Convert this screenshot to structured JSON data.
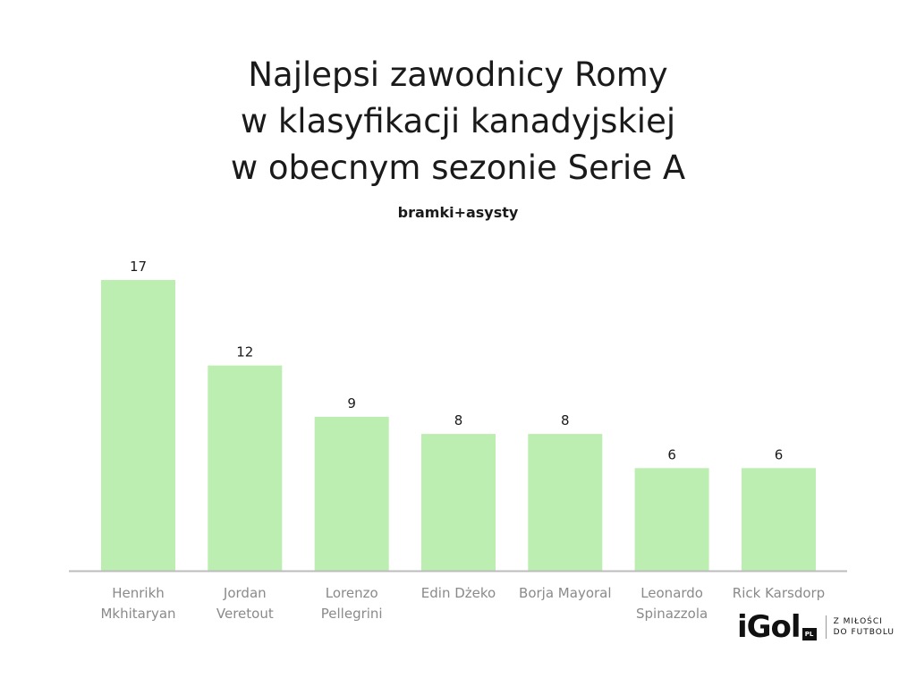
{
  "title_lines": [
    "Najlepsi zawodnicy Romy",
    "w klasyfikacji kanadyjskiej",
    "w obecnym sezonie Serie A"
  ],
  "subtitle": "bramki+asysty",
  "logo": {
    "word": "iGol",
    "badge": "PL",
    "tagline_1": "Z MIŁOŚCI",
    "tagline_2": "DO FUTBOLU"
  },
  "colors": {
    "bar": "#bdeeb1",
    "axis": "#bcbcbc",
    "value_text": "#1a1a1a",
    "category_text": "#8a8a8a"
  },
  "chart_data": {
    "type": "bar",
    "title": "Najlepsi zawodnicy Romy w klasyfikacji kanadyjskiej w obecnym sezonie Serie A",
    "subtitle": "bramki+asysty",
    "categories": [
      [
        "Henrikh",
        "Mkhitaryan"
      ],
      [
        "Jordan",
        "Veretout"
      ],
      [
        "Lorenzo",
        "Pellegrini"
      ],
      [
        "Edin Dżeko"
      ],
      [
        "Borja Mayoral"
      ],
      [
        "Leonardo",
        "Spinazzola"
      ],
      [
        "Rick Karsdorp"
      ]
    ],
    "values": [
      17,
      12,
      9,
      8,
      8,
      6,
      6
    ],
    "ylim": [
      0,
      17
    ],
    "grid": false,
    "legend": "none",
    "data_labels": true
  }
}
